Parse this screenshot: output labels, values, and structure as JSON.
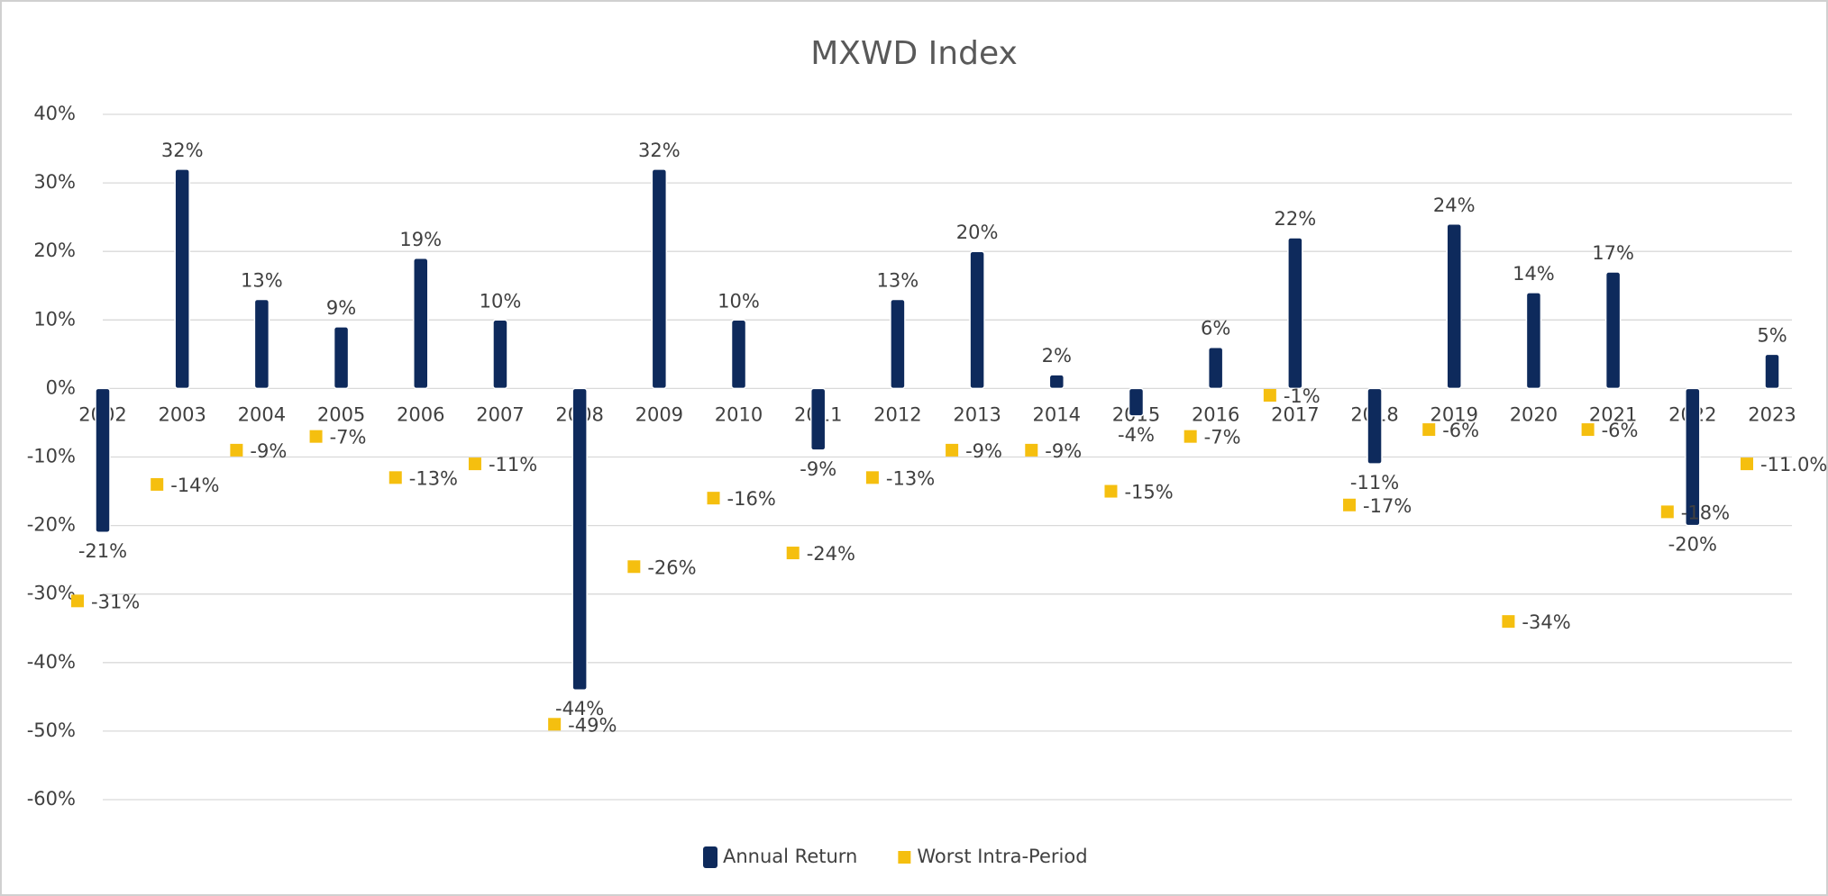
{
  "chart_data": {
    "type": "bar",
    "title": "MXWD Index",
    "categories": [
      "2002",
      "2003",
      "2004",
      "2005",
      "2006",
      "2007",
      "2008",
      "2009",
      "2010",
      "2011",
      "2012",
      "2013",
      "2014",
      "2015",
      "2016",
      "2017",
      "2018",
      "2019",
      "2020",
      "2021",
      "2022",
      "2023"
    ],
    "series": [
      {
        "name": "Annual Return",
        "type": "bar",
        "color": "#0e2a5c",
        "values": [
          -21,
          32,
          13,
          9,
          19,
          10,
          -44,
          32,
          10,
          -9,
          13,
          20,
          2,
          -4,
          6,
          22,
          -11,
          24,
          14,
          17,
          -20,
          5
        ],
        "value_labels": [
          "-21%",
          "32%",
          "13%",
          "9%",
          "19%",
          "10%",
          "-44%",
          "32%",
          "10%",
          "-9%",
          "13%",
          "20%",
          "2%",
          "-4%",
          "6%",
          "22%",
          "-11%",
          "24%",
          "14%",
          "17%",
          "-20%",
          "5%"
        ]
      },
      {
        "name": "Worst Intra-Period",
        "type": "scatter",
        "color": "#f5bf0f",
        "values": [
          -31,
          -14,
          -9,
          -7,
          -13,
          -11,
          -49,
          -26,
          -16,
          -24,
          -13,
          -9,
          -9,
          -15,
          -7,
          -1,
          -17,
          -6,
          -34,
          -6,
          -18,
          -11.0
        ],
        "value_labels": [
          "-31%",
          "-14%",
          "-9%",
          "-7%",
          "-13%",
          "-11%",
          "-49%",
          "-26%",
          "-16%",
          "-24%",
          "-13%",
          "-9%",
          "-9%",
          "-15%",
          "-7%",
          "-1%",
          "-17%",
          "-6%",
          "-34%",
          "-6%",
          "-18%",
          "-11.0%"
        ]
      }
    ],
    "ylim": [
      -60,
      40
    ],
    "yticks": [
      {
        "value": -60,
        "label": "-60%"
      },
      {
        "value": -50,
        "label": "-50%"
      },
      {
        "value": -40,
        "label": "-40%"
      },
      {
        "value": -30,
        "label": "-30%"
      },
      {
        "value": -20,
        "label": "-20%"
      },
      {
        "value": -10,
        "label": "-10%"
      },
      {
        "value": 0,
        "label": "0%"
      },
      {
        "value": 10,
        "label": "10%"
      },
      {
        "value": 20,
        "label": "20%"
      },
      {
        "value": 30,
        "label": "30%"
      },
      {
        "value": 40,
        "label": "40%"
      }
    ],
    "grid": true,
    "legend": "bottom"
  }
}
